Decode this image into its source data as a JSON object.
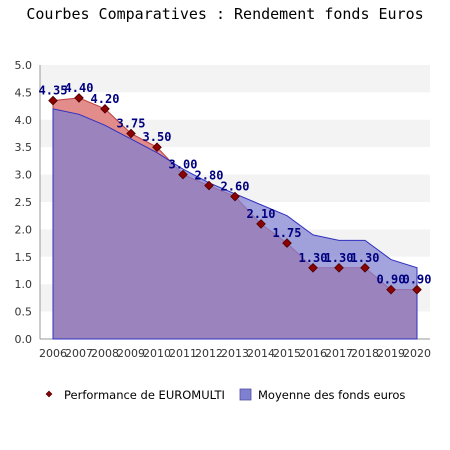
{
  "chart_data": {
    "type": "area",
    "title": "Courbes Comparatives : Rendement fonds Euros",
    "categories": [
      "2006",
      "2007",
      "2008",
      "2009",
      "2010",
      "2011",
      "2012",
      "2013",
      "2014",
      "2015",
      "2016",
      "2017",
      "2018",
      "2019",
      "2020"
    ],
    "series": [
      {
        "name": "Performance de EUROMULTI",
        "values": [
          4.35,
          4.4,
          4.2,
          3.75,
          3.5,
          3.0,
          2.8,
          2.6,
          2.1,
          1.75,
          1.3,
          1.3,
          1.3,
          0.9,
          0.9
        ],
        "labels": [
          "4.35",
          "4.40",
          "4.20",
          "3.75",
          "3.50",
          "3.00",
          "2.80",
          "2.60",
          "2.10",
          "1.75",
          "1.30",
          "1.30",
          "1.30",
          "0.90",
          "0.90"
        ],
        "color": "#e08080",
        "marker_color": "#8b0000"
      },
      {
        "name": "Moyenne des fonds euros",
        "values": [
          4.2,
          4.1,
          3.9,
          3.65,
          3.4,
          3.1,
          2.85,
          2.65,
          2.45,
          2.25,
          1.9,
          1.8,
          1.8,
          1.45,
          1.3
        ],
        "color": "#8080d0"
      }
    ],
    "yticks": [
      "0.0",
      "0.5",
      "1.0",
      "1.5",
      "2.0",
      "2.5",
      "3.0",
      "3.5",
      "4.0",
      "4.5",
      "5.0"
    ],
    "ylim": [
      0,
      5
    ],
    "grid": "horizontal-bands",
    "legend_position": "bottom"
  }
}
